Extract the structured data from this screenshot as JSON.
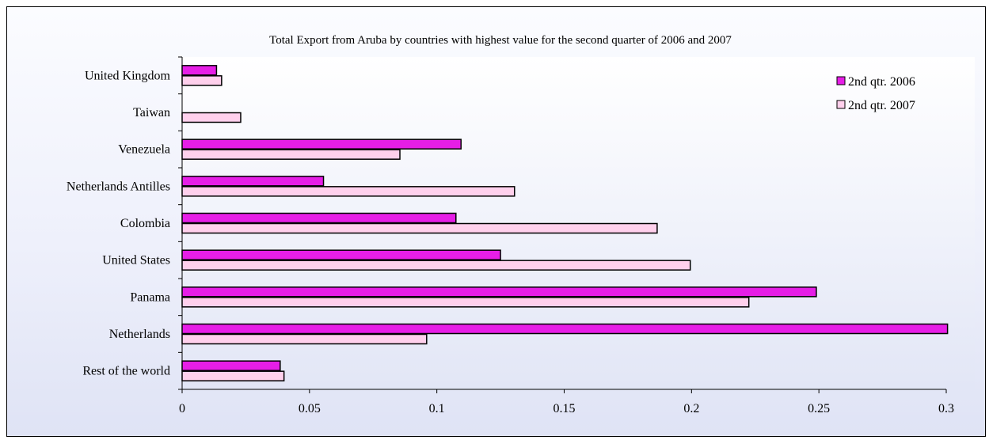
{
  "chart_data": {
    "type": "bar",
    "orientation": "horizontal",
    "title": "Total Export from Aruba by countries with highest value for the second quarter of 2006 and 2007",
    "categories": [
      "United Kingdom",
      "Taiwan",
      "Venezuela",
      "Netherlands Antilles",
      "Colombia",
      "United States",
      "Panama",
      "Netherlands",
      "Rest of the world"
    ],
    "series": [
      {
        "name": "2nd qtr. 2006",
        "color": "#e61ee6",
        "values": [
          0.0135,
          0,
          0.1095,
          0.0555,
          0.1075,
          0.125,
          0.249,
          0.3005,
          0.0385
        ]
      },
      {
        "name": "2nd qtr. 2007",
        "color": "#ffd0ec",
        "values": [
          0.0155,
          0.023,
          0.0855,
          0.1305,
          0.1865,
          0.1995,
          0.2225,
          0.096,
          0.04
        ]
      }
    ],
    "xlim": [
      0,
      0.3
    ],
    "xticks": [
      "0",
      "0.05",
      "0.1",
      "0.15",
      "0.2",
      "0.25",
      "0.3"
    ],
    "xlabel": "",
    "ylabel": "",
    "grid": false,
    "legend_position": "top-right"
  }
}
